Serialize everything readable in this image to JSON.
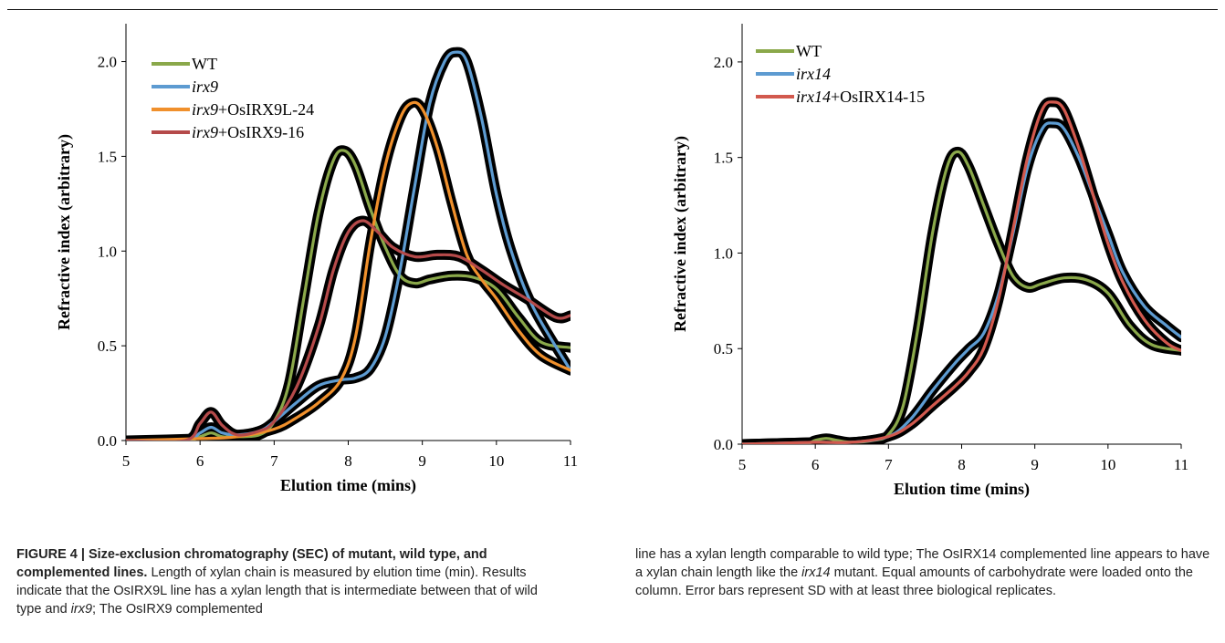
{
  "chart_data": [
    {
      "type": "line",
      "panel": "left",
      "xlabel": "Elution time (mins)",
      "ylabel": "Refractive index (arbitrary)",
      "xlim": [
        5,
        11
      ],
      "ylim": [
        0,
        2.2
      ],
      "xticks": [
        "5",
        "6",
        "7",
        "8",
        "9",
        "10",
        "11"
      ],
      "yticks": [
        "0.0",
        "0.5",
        "1.0",
        "1.5",
        "2.0"
      ],
      "legend_position": "top-left",
      "error_bars": "shaded",
      "series": [
        {
          "name_parts": [
            {
              "text": "WT",
              "italic": false
            }
          ],
          "color": "#8aa84a",
          "x": [
            5,
            5.8,
            6.0,
            6.15,
            6.3,
            6.5,
            6.8,
            7.0,
            7.2,
            7.4,
            7.6,
            7.8,
            7.95,
            8.1,
            8.3,
            8.5,
            8.7,
            8.9,
            9.1,
            9.4,
            9.7,
            10.0,
            10.3,
            10.6,
            11.0
          ],
          "y": [
            0,
            0.0,
            0.02,
            0.04,
            0.02,
            0.02,
            0.03,
            0.1,
            0.3,
            0.75,
            1.2,
            1.48,
            1.53,
            1.45,
            1.22,
            1.02,
            0.87,
            0.83,
            0.85,
            0.87,
            0.86,
            0.8,
            0.65,
            0.52,
            0.49
          ]
        },
        {
          "name_parts": [
            {
              "text": "irx9",
              "italic": true
            }
          ],
          "color": "#5d9bd1",
          "x": [
            5,
            5.8,
            6.0,
            6.15,
            6.3,
            6.5,
            6.8,
            7.0,
            7.3,
            7.6,
            7.9,
            8.1,
            8.3,
            8.5,
            8.7,
            8.9,
            9.1,
            9.3,
            9.45,
            9.6,
            9.8,
            10.0,
            10.2,
            10.5,
            11.0
          ],
          "y": [
            0,
            0.0,
            0.04,
            0.07,
            0.04,
            0.03,
            0.05,
            0.1,
            0.2,
            0.29,
            0.32,
            0.33,
            0.38,
            0.55,
            0.9,
            1.35,
            1.78,
            2.0,
            2.05,
            2.0,
            1.7,
            1.3,
            1.0,
            0.7,
            0.37
          ]
        },
        {
          "name_parts": [
            {
              "text": "irx9",
              "italic": true
            },
            {
              "text": "+OsIRX9L-24",
              "italic": false
            }
          ],
          "color": "#f0902c",
          "x": [
            5,
            6.0,
            6.5,
            7.0,
            7.3,
            7.6,
            7.9,
            8.1,
            8.3,
            8.5,
            8.7,
            8.85,
            9.0,
            9.2,
            9.4,
            9.6,
            9.8,
            10.0,
            10.3,
            10.6,
            11.0
          ],
          "y": [
            0,
            0.01,
            0.02,
            0.06,
            0.12,
            0.2,
            0.32,
            0.55,
            1.05,
            1.45,
            1.7,
            1.78,
            1.75,
            1.55,
            1.25,
            0.98,
            0.85,
            0.75,
            0.58,
            0.45,
            0.37
          ]
        },
        {
          "name_parts": [
            {
              "text": "irx9",
              "italic": true
            },
            {
              "text": "+OsIRX9-16",
              "italic": false
            }
          ],
          "color": "#b54a4a",
          "x": [
            5,
            5.8,
            6.0,
            6.15,
            6.3,
            6.5,
            6.8,
            7.0,
            7.3,
            7.6,
            7.8,
            8.0,
            8.2,
            8.4,
            8.6,
            8.9,
            9.2,
            9.5,
            9.8,
            10.1,
            10.4,
            10.8,
            11.0
          ],
          "y": [
            0,
            0.0,
            0.09,
            0.15,
            0.08,
            0.03,
            0.05,
            0.1,
            0.28,
            0.6,
            0.9,
            1.1,
            1.16,
            1.1,
            1.02,
            0.97,
            0.98,
            0.97,
            0.9,
            0.82,
            0.75,
            0.65,
            0.66
          ]
        }
      ]
    },
    {
      "type": "line",
      "panel": "right",
      "xlabel": "Elution time (mins)",
      "ylabel": "Refractive index (arbitrary)",
      "xlim": [
        5,
        11
      ],
      "ylim": [
        0,
        2.2
      ],
      "xticks": [
        "5",
        "6",
        "7",
        "8",
        "9",
        "10",
        "11"
      ],
      "yticks": [
        "0.0",
        "0.5",
        "1.0",
        "1.5",
        "2.0"
      ],
      "legend_position": "top-left",
      "error_bars": "shaded",
      "series": [
        {
          "name_parts": [
            {
              "text": "WT",
              "italic": false
            }
          ],
          "color": "#8aa84a",
          "x": [
            5,
            5.8,
            6.0,
            6.15,
            6.3,
            6.5,
            6.8,
            7.0,
            7.2,
            7.4,
            7.6,
            7.8,
            7.95,
            8.1,
            8.3,
            8.5,
            8.7,
            8.9,
            9.1,
            9.4,
            9.7,
            10.0,
            10.3,
            10.6,
            11.0
          ],
          "y": [
            0,
            0.0,
            0.02,
            0.03,
            0.02,
            0.01,
            0.02,
            0.05,
            0.2,
            0.6,
            1.1,
            1.45,
            1.53,
            1.45,
            1.25,
            1.05,
            0.88,
            0.82,
            0.84,
            0.87,
            0.86,
            0.79,
            0.62,
            0.52,
            0.49
          ]
        },
        {
          "name_parts": [
            {
              "text": "irx14",
              "italic": true
            }
          ],
          "color": "#5d9bd1",
          "x": [
            5,
            6.0,
            6.5,
            7.0,
            7.3,
            7.6,
            7.9,
            8.1,
            8.3,
            8.5,
            8.7,
            8.9,
            9.1,
            9.25,
            9.4,
            9.6,
            9.8,
            10.0,
            10.2,
            10.5,
            10.8,
            11.0
          ],
          "y": [
            0,
            0.01,
            0.01,
            0.04,
            0.13,
            0.28,
            0.42,
            0.5,
            0.58,
            0.78,
            1.1,
            1.45,
            1.65,
            1.68,
            1.65,
            1.5,
            1.3,
            1.1,
            0.9,
            0.72,
            0.62,
            0.56
          ]
        },
        {
          "name_parts": [
            {
              "text": "irx14",
              "italic": true
            },
            {
              "text": "+OsIRX14-15",
              "italic": false
            }
          ],
          "color": "#d2594e",
          "x": [
            5,
            6.0,
            6.5,
            7.0,
            7.3,
            7.6,
            7.9,
            8.1,
            8.3,
            8.5,
            8.7,
            8.9,
            9.1,
            9.25,
            9.4,
            9.6,
            9.8,
            10.0,
            10.2,
            10.5,
            10.8,
            11.0
          ],
          "y": [
            0,
            0.01,
            0.01,
            0.04,
            0.1,
            0.2,
            0.3,
            0.38,
            0.5,
            0.75,
            1.12,
            1.5,
            1.75,
            1.79,
            1.75,
            1.55,
            1.3,
            1.05,
            0.85,
            0.65,
            0.53,
            0.49
          ]
        }
      ]
    }
  ],
  "caption": {
    "label": "FIGURE 4 | Size-exclusion chromatography (SEC) of mutant, wild type, and complemented lines.",
    "left_parts": [
      {
        "text": " Length of xylan chain is measured by elution time (min). Results indicate that the OsIRX9L line has a xylan length that is intermediate between that of wild type and ",
        "italic": false
      },
      {
        "text": "irx9",
        "italic": true
      },
      {
        "text": "; The OsIRX9 complemented",
        "italic": false
      }
    ],
    "right_parts": [
      {
        "text": "line has a xylan length comparable to wild type; The OsIRX14 complemented line appears to have a xylan chain length like the ",
        "italic": false
      },
      {
        "text": "irx14",
        "italic": true
      },
      {
        "text": " mutant. Equal amounts of carbohydrate were loaded onto the column. Error bars represent SD with at least three biological replicates.",
        "italic": false
      }
    ]
  }
}
